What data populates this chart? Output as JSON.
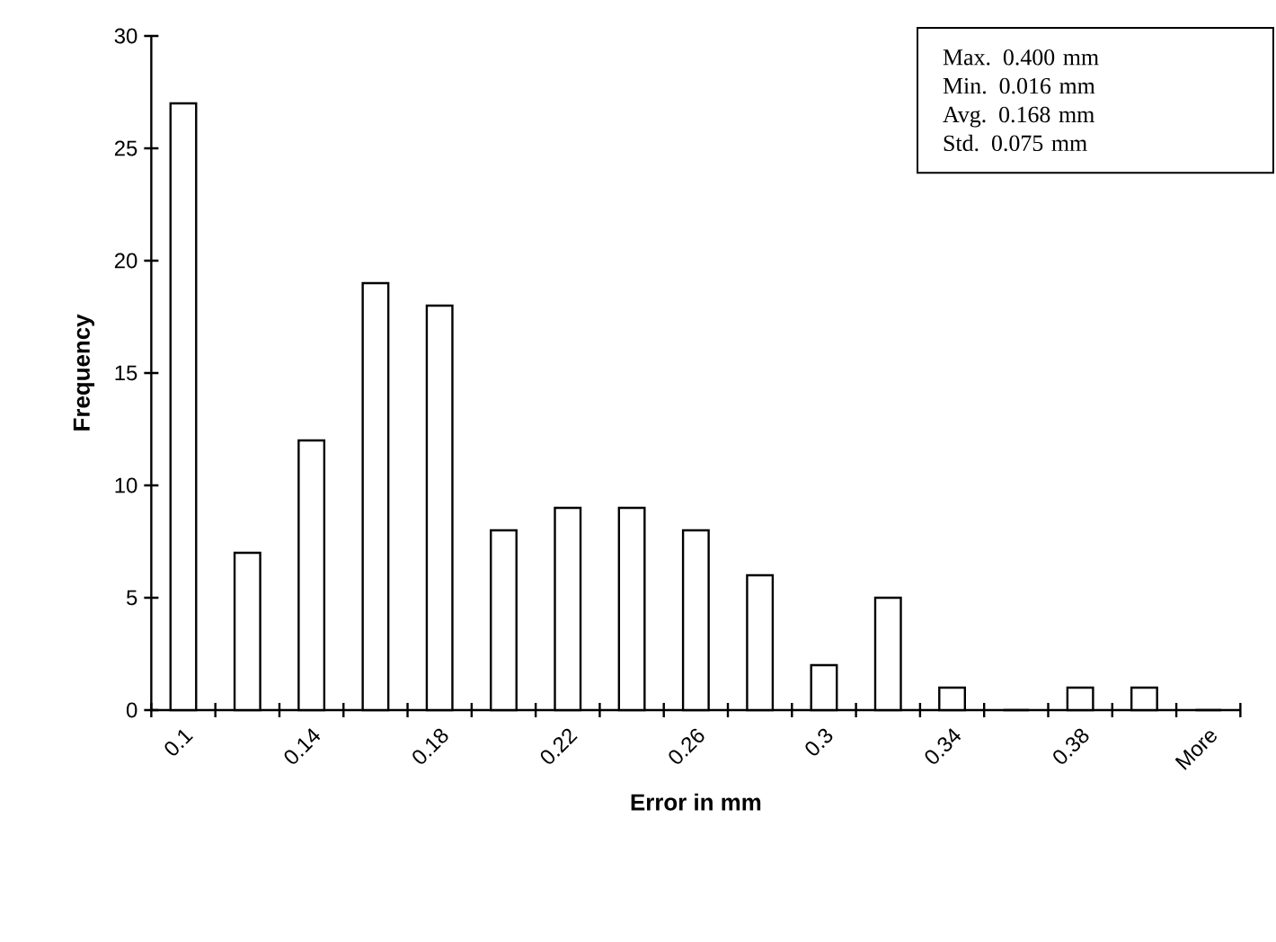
{
  "chart_data": {
    "type": "bar",
    "xlabel": "Error in mm",
    "ylabel": "Frequency",
    "categories": [
      "0.1",
      null,
      "0.14",
      null,
      "0.18",
      null,
      "0.22",
      null,
      "0.26",
      null,
      "0.3",
      null,
      "0.34",
      null,
      "0.38",
      null,
      "More"
    ],
    "values": [
      27,
      7,
      12,
      19,
      18,
      8,
      9,
      9,
      8,
      6,
      2,
      5,
      1,
      0,
      1,
      1,
      0
    ],
    "color": "#ffffff",
    "ylim": [
      0,
      30
    ],
    "yticks": [
      0,
      5,
      10,
      15,
      20,
      25,
      30
    ],
    "annotations": [
      "Max.    0.400 mm",
      "Min.    0.016 mm",
      "Avg.    0.168 mm",
      "Std.     0.075 mm"
    ]
  }
}
